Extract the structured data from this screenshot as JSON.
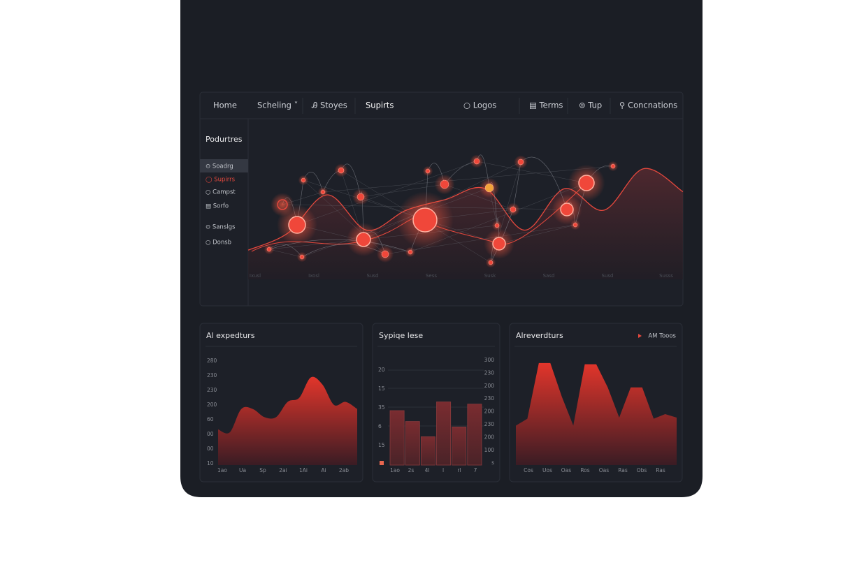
{
  "nav": [
    "Home",
    "Scheling ˅",
    "Ꭿ Stoyes",
    "Supirts",
    "○ Logos",
    "▤ Terms",
    "⊜ Tup",
    "⚲ Concnations"
  ],
  "sidebar": {
    "title": "Podurtres",
    "items": [
      "⊙ Soadrg",
      "◯ Supirrs",
      "○ Campst",
      "▤ Sorfo",
      "⊙ Sanslgs",
      "○ Donsb"
    ]
  },
  "main_chart": {
    "type": "area",
    "color": "#e5483d",
    "ylim": [
      0,
      100
    ],
    "x_labels": [
      "Ixusl",
      "Ixosl",
      "Susd",
      "Sess",
      "Susk",
      "Sasd",
      "Susd",
      "Susss"
    ],
    "values": [
      19,
      30,
      55,
      32,
      45,
      52,
      59,
      32,
      59,
      45,
      72,
      57
    ]
  },
  "cards": [
    {
      "type": "area",
      "title": "Al expedturs",
      "ylim": [
        0,
        100
      ],
      "y_labels": [
        "280",
        "230",
        "230",
        "200",
        "60",
        "00",
        "00",
        "10"
      ],
      "x_labels": [
        "1ao",
        "Ua",
        "Sp",
        "2ai",
        "1Ai",
        "Ai",
        "2ab"
      ],
      "values": [
        35,
        32,
        55,
        55,
        47,
        47,
        62,
        66,
        86,
        79,
        59,
        62,
        55
      ]
    },
    {
      "type": "bar",
      "title": "Sypiqe lese",
      "ylim": [
        0,
        100
      ],
      "y_labels_left": [
        "20",
        "15",
        "35",
        "6",
        "15"
      ],
      "y_labels_right": [
        "300",
        "230",
        "200",
        "230",
        "200",
        "230",
        "200",
        "100",
        "s"
      ],
      "x_labels": [
        "1ao",
        "2s",
        "4l",
        "l",
        "rl",
        "7"
      ],
      "values": [
        50,
        40,
        26,
        58,
        35,
        56
      ]
    },
    {
      "type": "area",
      "title": "Alreverdturs",
      "legend": "AM Tooos",
      "ylim": [
        0,
        100
      ],
      "x_labels": [
        "Cos",
        "Uos",
        "Oas",
        "Ros",
        "Oas",
        "Ras",
        "Obs",
        "Ras"
      ],
      "values": [
        34,
        40,
        88,
        88,
        59,
        34,
        87,
        87,
        67,
        41,
        67,
        67,
        40,
        44,
        41
      ]
    }
  ]
}
